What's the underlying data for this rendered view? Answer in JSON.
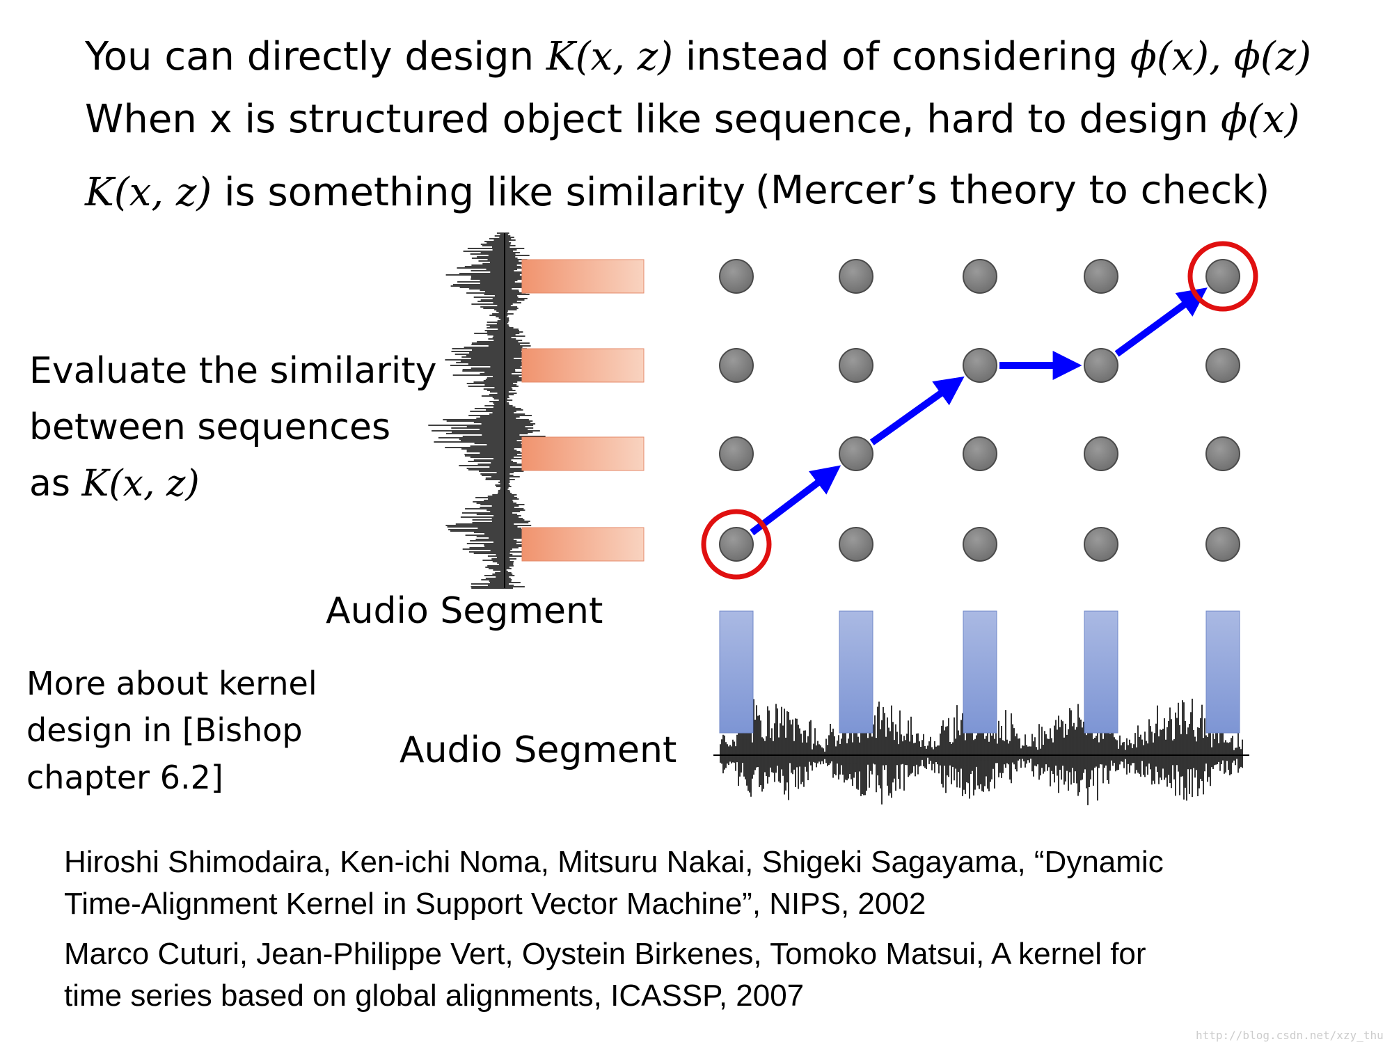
{
  "header": {
    "line1": {
      "a": "You can directly design ",
      "b": "K(x, z)",
      "c": " instead of considering ",
      "d": "ϕ(x), ϕ(z)"
    },
    "line2": {
      "a": "When x is structured object like sequence,  hard to design ",
      "b": "ϕ(x)"
    },
    "line3": {
      "a": "K(x, z)",
      "b": " is something like similarity",
      "c": "(Mercer’s theory to check)"
    }
  },
  "left_text": {
    "l1": "Evaluate the similarity",
    "l2": "between sequences",
    "l3a": "as ",
    "l3b": "K(x, z)"
  },
  "labels": {
    "audio_segment_vertical": "Audio Segment",
    "audio_segment_horizontal": "Audio Segment"
  },
  "more_about": {
    "l1": "More about kernel",
    "l2": "design in [Bishop",
    "l3": "chapter 6.2]"
  },
  "references": [
    {
      "l1": "Hiroshi Shimodaira, Ken-ichi Noma, Mitsuru Nakai, Shigeki Sagayama, “Dynamic",
      "l2": "Time-Alignment Kernel in Support Vector Machine”, NIPS, 2002"
    },
    {
      "l1": "Marco Cuturi, Jean-Philippe Vert, Oystein Birkenes, Tomoko Matsui, A kernel for",
      "l2": "time series based on global alignments, ICASSP, 2007"
    }
  ],
  "watermark": "http://blog.csdn.net/xzy_thu",
  "grid": {
    "rows": 4,
    "cols": 5,
    "path": [
      [
        0,
        0
      ],
      [
        1,
        1
      ],
      [
        2,
        2
      ],
      [
        3,
        2
      ],
      [
        4,
        3
      ]
    ],
    "circled": [
      [
        0,
        0
      ],
      [
        4,
        3
      ]
    ]
  },
  "colors": {
    "node": "#7f7f7f",
    "arrow": "#0000ff",
    "circle": "#e01010",
    "segment_h": "#f2a283",
    "segment_v": "#8fa5d9"
  }
}
